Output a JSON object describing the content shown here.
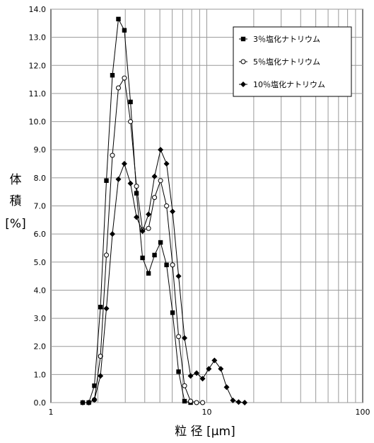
{
  "chart_data": {
    "type": "line",
    "title": "",
    "xlabel": "粒 径 [μm]",
    "ylabel_lines": [
      "体",
      "積",
      "[%]"
    ],
    "xscale": "log",
    "xlim": [
      1,
      100
    ],
    "ylim": [
      0,
      14
    ],
    "xticks": [
      1,
      10,
      100
    ],
    "xtick_labels": [
      "1",
      "10",
      "100"
    ],
    "yticks": [
      0,
      1,
      2,
      3,
      4,
      5,
      6,
      7,
      8,
      9,
      10,
      11,
      12,
      13,
      14
    ],
    "ytick_labels": [
      "0.0",
      "1.0",
      "2.0",
      "3.0",
      "4.0",
      "5.0",
      "6.0",
      "7.0",
      "8.0",
      "9.0",
      "10.0",
      "11.0",
      "12.0",
      "13.0",
      "14.0"
    ],
    "grid": true,
    "legend_position": "top-right",
    "series": [
      {
        "name": "3％塩化ナトリウム",
        "marker": "square",
        "color": "#000000",
        "points": [
          [
            1.6,
            0
          ],
          [
            1.75,
            0
          ],
          [
            1.9,
            0.6
          ],
          [
            2.08,
            3.4
          ],
          [
            2.27,
            7.9
          ],
          [
            2.48,
            11.65
          ],
          [
            2.71,
            13.65
          ],
          [
            2.96,
            13.25
          ],
          [
            3.24,
            10.7
          ],
          [
            3.54,
            7.45
          ],
          [
            3.87,
            5.15
          ],
          [
            4.23,
            4.6
          ],
          [
            4.62,
            5.25
          ],
          [
            5.05,
            5.7
          ],
          [
            5.52,
            4.9
          ],
          [
            6.03,
            3.2
          ],
          [
            6.59,
            1.1
          ],
          [
            7.2,
            0.05
          ],
          [
            7.87,
            0
          ]
        ]
      },
      {
        "name": "5％塩化ナトリウム",
        "marker": "circle-open",
        "color": "#000000",
        "points": [
          [
            1.75,
            0
          ],
          [
            1.9,
            0.1
          ],
          [
            2.08,
            1.65
          ],
          [
            2.27,
            5.25
          ],
          [
            2.48,
            8.8
          ],
          [
            2.71,
            11.2
          ],
          [
            2.96,
            11.55
          ],
          [
            3.24,
            10
          ],
          [
            3.54,
            7.7
          ],
          [
            3.87,
            6.15
          ],
          [
            4.23,
            6.2
          ],
          [
            4.62,
            7.3
          ],
          [
            5.05,
            7.9
          ],
          [
            5.52,
            7
          ],
          [
            6.03,
            4.9
          ],
          [
            6.59,
            2.35
          ],
          [
            7.2,
            0.6
          ],
          [
            7.87,
            0.05
          ],
          [
            8.6,
            0
          ],
          [
            9.4,
            0
          ]
        ]
      },
      {
        "name": "10％塩化ナトリウム",
        "marker": "diamond",
        "color": "#000000",
        "points": [
          [
            1.6,
            0
          ],
          [
            1.75,
            0
          ],
          [
            1.9,
            0.1
          ],
          [
            2.08,
            0.95
          ],
          [
            2.27,
            3.35
          ],
          [
            2.48,
            6
          ],
          [
            2.71,
            7.95
          ],
          [
            2.96,
            8.5
          ],
          [
            3.24,
            7.8
          ],
          [
            3.54,
            6.6
          ],
          [
            3.87,
            6.1
          ],
          [
            4.23,
            6.7
          ],
          [
            4.62,
            8.05
          ],
          [
            5.05,
            9
          ],
          [
            5.52,
            8.5
          ],
          [
            6.03,
            6.8
          ],
          [
            6.59,
            4.5
          ],
          [
            7.2,
            2.3
          ],
          [
            7.87,
            0.95
          ],
          [
            8.6,
            1.05
          ],
          [
            9.4,
            0.85
          ],
          [
            10.3,
            1.2
          ],
          [
            11.2,
            1.5
          ],
          [
            12.3,
            1.2
          ],
          [
            13.4,
            0.55
          ],
          [
            14.7,
            0.08
          ],
          [
            16,
            0.02
          ],
          [
            17.5,
            0
          ]
        ]
      }
    ]
  }
}
